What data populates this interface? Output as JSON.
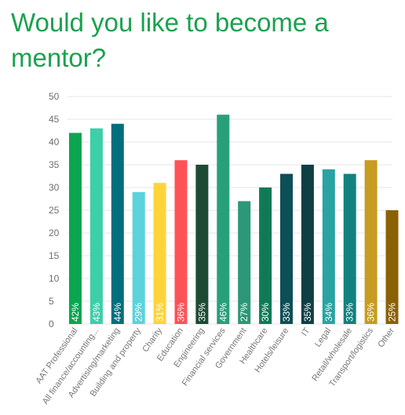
{
  "title": "Would you like to become a mentor?",
  "chart_data": {
    "type": "bar",
    "title": "Would you like to become a mentor?",
    "xlabel": "",
    "ylabel": "",
    "ylim": [
      0,
      50
    ],
    "yticks": [
      0,
      5,
      10,
      15,
      20,
      25,
      30,
      35,
      40,
      45,
      50
    ],
    "grid": true,
    "legend": "none",
    "categories": [
      "AAT Professional",
      "All finance/accounting...",
      "Advertising/marketing",
      "Building and property",
      "Charity",
      "Education",
      "Engineering",
      "Financial services",
      "Government",
      "Healthcare",
      "Hotels/leisure",
      "IT",
      "Legal",
      "Retail/wholesale",
      "Transport/logistics",
      "Other"
    ],
    "values": [
      42,
      43,
      44,
      29,
      31,
      36,
      35,
      46,
      27,
      30,
      33,
      35,
      34,
      33,
      36,
      25
    ],
    "data_labels": [
      "42%",
      "43%",
      "44%",
      "29%",
      "31%",
      "36%",
      "35%",
      "46%",
      "27%",
      "30%",
      "33%",
      "35%",
      "34%",
      "33%",
      "36%",
      "25%"
    ],
    "colors": [
      "#0aa650",
      "#3ccfa8",
      "#006f7d",
      "#5bd3dc",
      "#ffd43a",
      "#ff5257",
      "#1d4a33",
      "#27a07a",
      "#2b9877",
      "#107a57",
      "#0d4f56",
      "#0e3f45",
      "#29a3a3",
      "#128280",
      "#c89b21",
      "#8b6105"
    ]
  }
}
